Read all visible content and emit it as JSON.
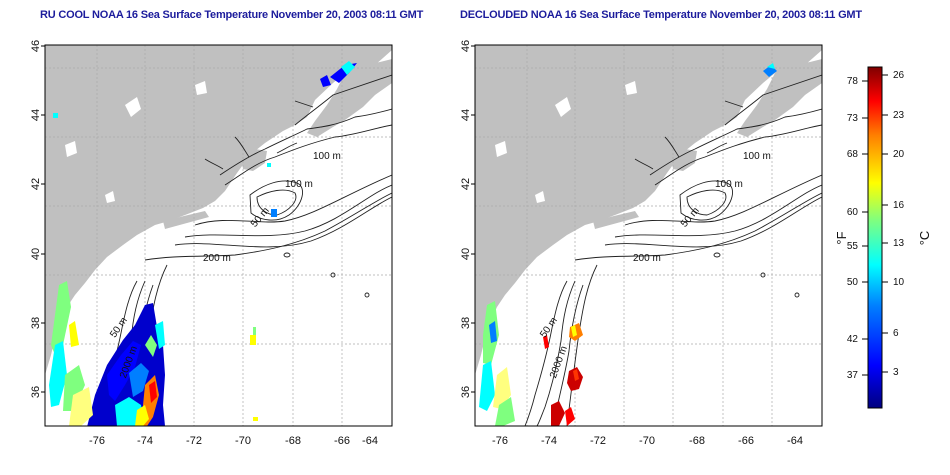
{
  "panels": [
    {
      "title": "RU COOL NOAA 16 Sea Surface Temperature November 20, 2003 08:11 GMT"
    },
    {
      "title": "DECLOUDED NOAA 16 Sea Surface Temperature November 20, 2003 08:11 GMT"
    }
  ],
  "axes": {
    "lon_ticks": [
      "-76",
      "-74",
      "-72",
      "-70",
      "-68",
      "-66",
      "-64"
    ],
    "lat_ticks": [
      "46",
      "44",
      "42",
      "40",
      "38",
      "36"
    ]
  },
  "contours": {
    "label_100a": "100 m",
    "label_100b": "100 m",
    "label_50a": "50 m",
    "label_200": "200 m",
    "label_50b": "50 m",
    "label_2000": "2000 m"
  },
  "colorbar": {
    "f_unit": "°F",
    "c_unit": "°C",
    "f_ticks": [
      "78",
      "73",
      "68",
      "60",
      "55",
      "50",
      "42",
      "37"
    ],
    "c_ticks": [
      "26",
      "23",
      "20",
      "16",
      "13",
      "10",
      "6",
      "3"
    ]
  },
  "colors": {
    "land": "#c0c0c0",
    "title": "#1c1c9c",
    "grid": "#aaaaaa",
    "scale": [
      "#00007f",
      "#0000ff",
      "#007fff",
      "#00ffff",
      "#7fff7f",
      "#ffff00",
      "#ff7f00",
      "#ff0000",
      "#7f0000"
    ]
  }
}
